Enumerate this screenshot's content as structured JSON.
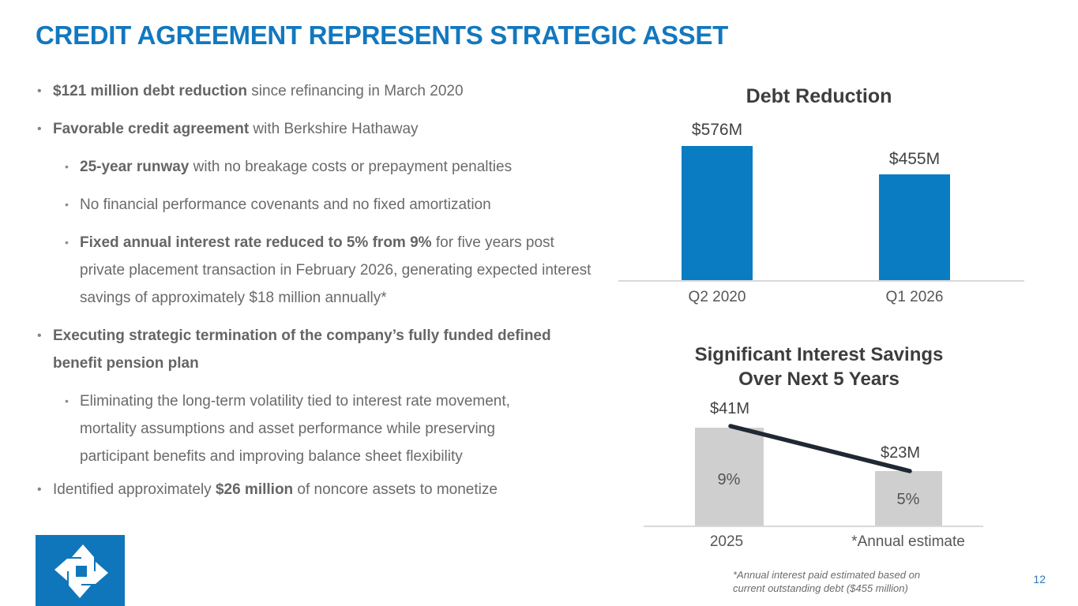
{
  "slide": {
    "title": "CREDIT AGREEMENT REPRESENTS STRATEGIC ASSET",
    "page_number": "12",
    "accent_color": "#1278be"
  },
  "bullets": [
    {
      "level": 1,
      "pre": "",
      "bold": "$121 million debt reduction",
      "post": " since refinancing in March 2020"
    },
    {
      "level": 1,
      "pre": "",
      "bold": "Favorable credit agreement",
      "post": " with Berkshire Hathaway"
    },
    {
      "level": 2,
      "pre": "",
      "bold": "25-year runway",
      "post": " with no breakage costs or prepayment penalties"
    },
    {
      "level": 2,
      "pre": "No financial performance covenants and no fixed amortization",
      "bold": "",
      "post": ""
    },
    {
      "level": 2,
      "pre": "",
      "bold": "Fixed annual interest rate reduced to 5% from 9%",
      "post": " for five years post private placement transaction in February 2026, generating expected interest savings of approximately $18 million annually*"
    },
    {
      "level": 1,
      "pre": "",
      "bold": "Executing strategic termination of the company’s fully funded defined benefit pension plan",
      "post": ""
    },
    {
      "level": 2,
      "pre": "Eliminating the long-term volatility tied to interest rate movement, mortality assumptions and asset performance while preserving participant benefits and improving balance sheet flexibility",
      "bold": "",
      "post": ""
    },
    {
      "level": 1,
      "pre": "Identified approximately ",
      "bold": "$26 million",
      "post": " of noncore assets to monetize"
    }
  ],
  "chart_data": [
    {
      "type": "bar",
      "title": "Debt Reduction",
      "categories": [
        "Q2 2020",
        "Q1 2026"
      ],
      "values": [
        576,
        455
      ],
      "unit": "$M",
      "data_labels": [
        "$576M",
        "$455M"
      ],
      "bar_color": "#0a7cc2",
      "ylim": [
        0,
        576
      ],
      "grid": false,
      "legend": false
    },
    {
      "type": "bar",
      "title": "Significant Interest Savings Over Next 5 Years",
      "title_lines": [
        "Significant Interest Savings",
        "Over Next 5 Years"
      ],
      "categories": [
        "2025",
        "*Annual estimate"
      ],
      "values": [
        41,
        23
      ],
      "unit": "$M",
      "data_labels": [
        "$41M",
        "$23M"
      ],
      "bar_annotations": [
        "9%",
        "5%"
      ],
      "bar_color": "#cfcfcf",
      "trend_line": {
        "present": true,
        "color": "#1f2833",
        "from_value": 41,
        "to_value": 23
      },
      "ylim": [
        0,
        41
      ],
      "grid": false,
      "legend": false,
      "footnote": "*Annual interest paid estimated based on current outstanding debt ($455 million)"
    }
  ]
}
